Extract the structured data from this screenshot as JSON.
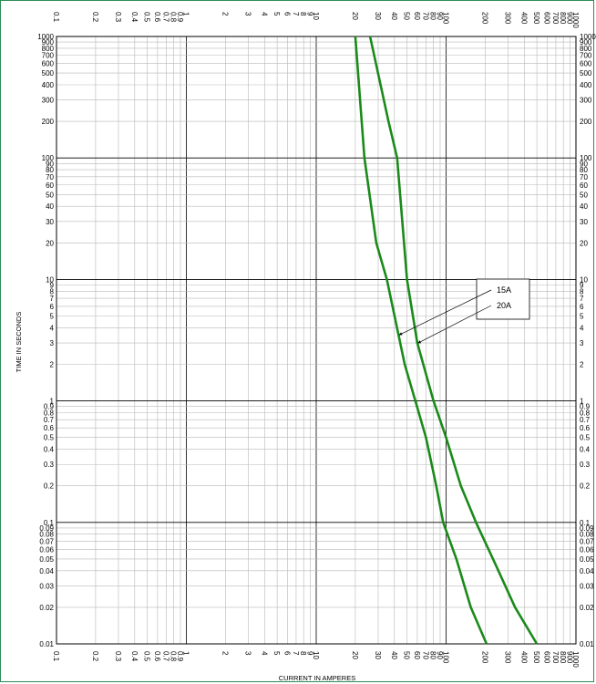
{
  "chart_data": {
    "type": "line",
    "xlabel": "CURRENT IN AMPERES",
    "ylabel": "TIME IN SECONDS",
    "x_scale": "log",
    "y_scale": "log",
    "xlim": [
      0.1,
      1000
    ],
    "ylim": [
      0.01,
      1000
    ],
    "grid": true,
    "x_tick_labels": [
      "0.1",
      "0.2",
      "0.3",
      "0.4",
      "0.5",
      "0.6",
      "0.7",
      "0.8",
      "0.9",
      "1",
      "2",
      "3",
      "4",
      "5",
      "6",
      "7",
      "8",
      "9",
      "10",
      "20",
      "30",
      "40",
      "50",
      "60",
      "70",
      "80",
      "90",
      "100",
      "200",
      "300",
      "400",
      "500",
      "600",
      "700",
      "800",
      "900",
      "1000"
    ],
    "y_tick_labels": [
      "0.01",
      "0.02",
      "0.03",
      "0.04",
      "0.05",
      "0.06",
      "0.07",
      "0.08",
      "0.09",
      "0.1",
      "0.2",
      "0.3",
      "0.4",
      "0.5",
      "0.6",
      "0.7",
      "0.8",
      "0.9",
      "1",
      "2",
      "3",
      "4",
      "5",
      "6",
      "7",
      "8",
      "9",
      "10",
      "20",
      "30",
      "40",
      "50",
      "60",
      "70",
      "80",
      "90",
      "100",
      "200",
      "300",
      "400",
      "500",
      "600",
      "700",
      "800",
      "900",
      "1000"
    ],
    "series_color": "#1a8a1a",
    "series": [
      {
        "name": "15A",
        "points": [
          [
            20,
            1000
          ],
          [
            23.5,
            100
          ],
          [
            29,
            20
          ],
          [
            35,
            10
          ],
          [
            48,
            2
          ],
          [
            58,
            1
          ],
          [
            70,
            0.5
          ],
          [
            84,
            0.2
          ],
          [
            95,
            0.1
          ],
          [
            120,
            0.05
          ],
          [
            155,
            0.02
          ],
          [
            205,
            0.01
          ]
        ]
      },
      {
        "name": "20A",
        "points": [
          [
            26,
            1000
          ],
          [
            36,
            200
          ],
          [
            42,
            100
          ],
          [
            50,
            10
          ],
          [
            60,
            3
          ],
          [
            80,
            1
          ],
          [
            100,
            0.5
          ],
          [
            130,
            0.2
          ],
          [
            170,
            0.1
          ],
          [
            230,
            0.05
          ],
          [
            340,
            0.02
          ],
          [
            500,
            0.01
          ]
        ]
      }
    ],
    "legend": {
      "position": "right",
      "entries": [
        "15A",
        "20A"
      ]
    }
  }
}
